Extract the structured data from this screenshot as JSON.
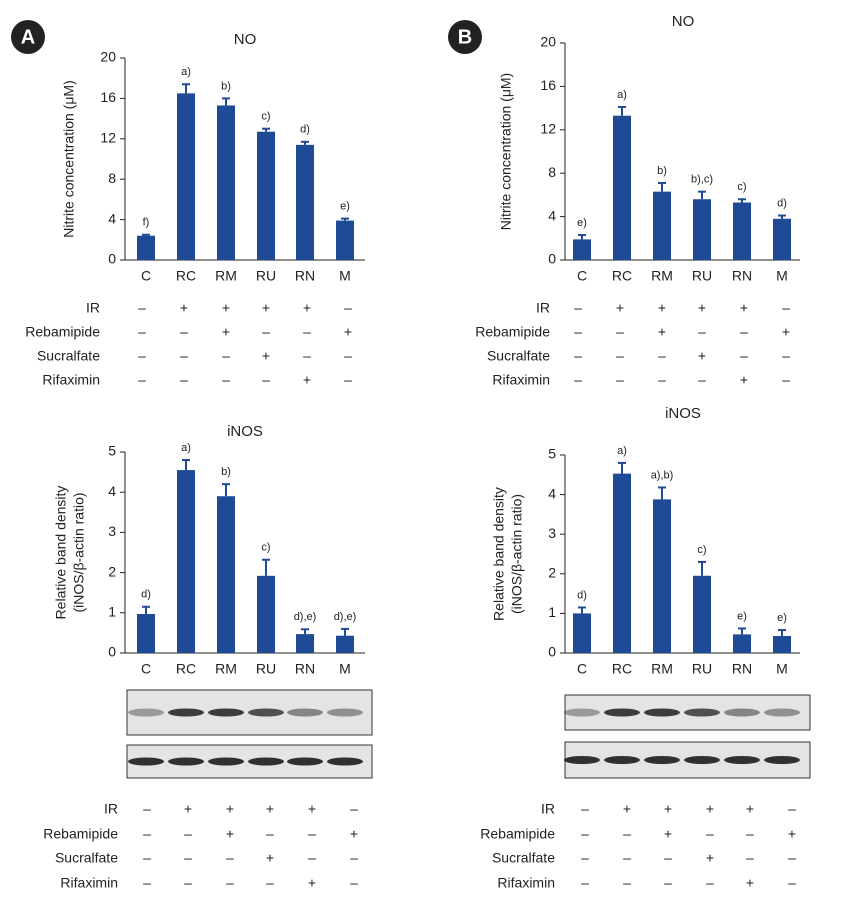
{
  "chart_data": [
    {
      "type": "bar",
      "panel": "A",
      "title": "NO",
      "ylabel": [
        "Nitrite concentration (μM)"
      ],
      "categories": [
        "C",
        "RC",
        "RM",
        "RU",
        "RN",
        "M"
      ],
      "values": [
        2.4,
        16.5,
        15.3,
        12.7,
        11.4,
        3.9
      ],
      "errors": [
        0.1,
        0.9,
        0.7,
        0.3,
        0.3,
        0.2
      ],
      "annotations": [
        "f)",
        "a)",
        "b)",
        "c)",
        "d)",
        "e)"
      ],
      "color": "#1f4a96",
      "ylim": [
        0,
        20
      ],
      "yticks": [
        0,
        4,
        8,
        12,
        16,
        20
      ],
      "treatments": [
        {
          "label": "IR",
          "marks": [
            "–",
            "+",
            "+",
            "+",
            "+",
            "–"
          ]
        },
        {
          "label": "Rebamipide",
          "marks": [
            "–",
            "–",
            "+",
            "–",
            "–",
            "+"
          ]
        },
        {
          "label": "Sucralfate",
          "marks": [
            "–",
            "–",
            "–",
            "+",
            "–",
            "–"
          ]
        },
        {
          "label": "Rifaximin",
          "marks": [
            "–",
            "–",
            "–",
            "–",
            "+",
            "–"
          ]
        }
      ]
    },
    {
      "type": "bar",
      "panel": "B",
      "title": "NO",
      "ylabel": [
        "Nitrite concentration (μM)"
      ],
      "categories": [
        "C",
        "RC",
        "RM",
        "RU",
        "RN",
        "M"
      ],
      "values": [
        1.9,
        13.3,
        6.3,
        5.6,
        5.3,
        3.8
      ],
      "errors": [
        0.4,
        0.8,
        0.8,
        0.7,
        0.3,
        0.3
      ],
      "annotations": [
        "e)",
        "a)",
        "b)",
        "b),c)",
        "c)",
        "d)"
      ],
      "color": "#1f4a96",
      "ylim": [
        0,
        20
      ],
      "yticks": [
        0,
        4,
        8,
        12,
        16,
        20
      ],
      "treatments": [
        {
          "label": "IR",
          "marks": [
            "–",
            "+",
            "+",
            "+",
            "+",
            "–"
          ]
        },
        {
          "label": "Rebamipide",
          "marks": [
            "–",
            "–",
            "+",
            "–",
            "–",
            "+"
          ]
        },
        {
          "label": "Sucralfate",
          "marks": [
            "–",
            "–",
            "–",
            "+",
            "–",
            "–"
          ]
        },
        {
          "label": "Rifaximin",
          "marks": [
            "–",
            "–",
            "–",
            "–",
            "+",
            "–"
          ]
        }
      ]
    },
    {
      "type": "bar",
      "title": "iNOS",
      "ylabel": [
        "Relative band density",
        "(iNOS/β-actin ratio)"
      ],
      "categories": [
        "C",
        "RC",
        "RM",
        "RU",
        "RN",
        "M"
      ],
      "values": [
        0.97,
        4.55,
        3.9,
        1.92,
        0.47,
        0.43
      ],
      "errors": [
        0.18,
        0.25,
        0.3,
        0.4,
        0.12,
        0.17
      ],
      "annotations": [
        "d)",
        "a)",
        "b)",
        "c)",
        "d),e)",
        "d),e)"
      ],
      "color": "#1f4a96",
      "ylim": [
        0,
        5
      ],
      "yticks": [
        0,
        1,
        2,
        3,
        4,
        5
      ],
      "treatments": [
        {
          "label": "IR",
          "marks": [
            "–",
            "+",
            "+",
            "+",
            "+",
            "–"
          ]
        },
        {
          "label": "Rebamipide",
          "marks": [
            "–",
            "–",
            "+",
            "–",
            "–",
            "+"
          ]
        },
        {
          "label": "Sucralfate",
          "marks": [
            "–",
            "–",
            "–",
            "+",
            "–",
            "–"
          ]
        },
        {
          "label": "Rifaximin",
          "marks": [
            "–",
            "–",
            "–",
            "–",
            "+",
            "–"
          ]
        }
      ]
    },
    {
      "type": "bar",
      "title": "iNOS",
      "ylabel": [
        "Relative band density",
        "(iNOS/β-actin ratio)"
      ],
      "categories": [
        "C",
        "RC",
        "RM",
        "RU",
        "RN",
        "M"
      ],
      "values": [
        1.0,
        4.53,
        3.88,
        1.95,
        0.47,
        0.43
      ],
      "errors": [
        0.15,
        0.27,
        0.3,
        0.35,
        0.15,
        0.15
      ],
      "annotations": [
        "d)",
        "a)",
        "a),b)",
        "c)",
        "e)",
        "e)"
      ],
      "color": "#1f4a96",
      "ylim": [
        0,
        5
      ],
      "yticks": [
        0,
        1,
        2,
        3,
        4,
        5
      ],
      "treatments": [
        {
          "label": "IR",
          "marks": [
            "–",
            "+",
            "+",
            "+",
            "+",
            "–"
          ]
        },
        {
          "label": "Rebamipide",
          "marks": [
            "–",
            "–",
            "+",
            "–",
            "–",
            "+"
          ]
        },
        {
          "label": "Sucralfate",
          "marks": [
            "–",
            "–",
            "–",
            "+",
            "–",
            "–"
          ]
        },
        {
          "label": "Rifaximin",
          "marks": [
            "–",
            "–",
            "–",
            "–",
            "+",
            "–"
          ]
        }
      ]
    }
  ]
}
